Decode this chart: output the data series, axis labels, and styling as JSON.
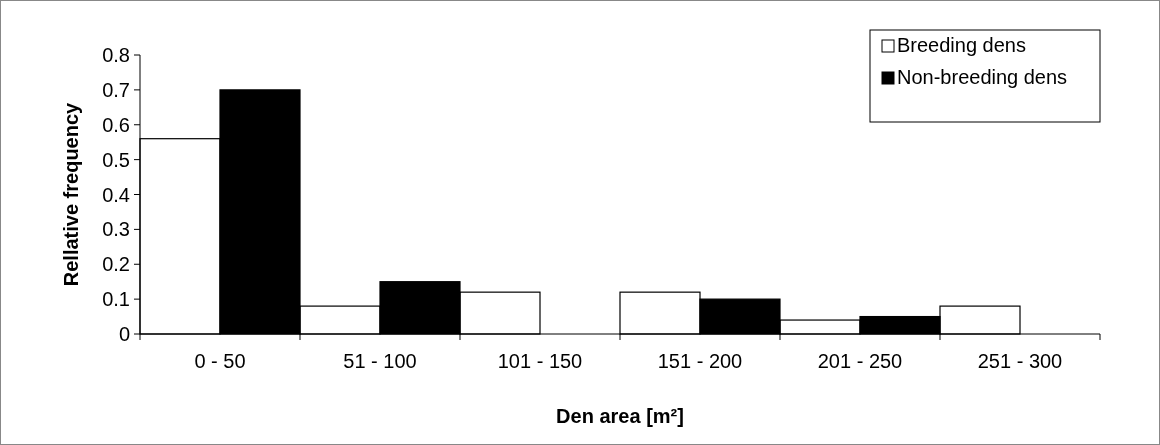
{
  "chart_data": {
    "type": "bar",
    "xlabel": "Den area [m²]",
    "ylabel": "Rellative frequency",
    "categories": [
      "0 - 50",
      "51 - 100",
      "101 - 150",
      "151 - 200",
      "201 - 250",
      "251 - 300"
    ],
    "series": [
      {
        "name": "Breeding dens",
        "color": "#ffffff",
        "values": [
          0.56,
          0.08,
          0.12,
          0.12,
          0.04,
          0.08
        ]
      },
      {
        "name": "Non-breeding dens",
        "color": "#000000",
        "values": [
          0.7,
          0.15,
          0,
          0.1,
          0.05,
          0
        ]
      }
    ],
    "ylim": [
      0,
      0.8
    ],
    "yticks": [
      0,
      {
        "value": 0.1,
        "label": "0.1"
      },
      {
        "value": 0.2,
        "label": "0.2"
      },
      {
        "value": 0.3,
        "label": "0.3"
      },
      {
        "value": 0.4,
        "label": "0.4"
      },
      {
        "value": 0.5,
        "label": "0.5"
      },
      {
        "value": 0.6,
        "label": "0.6"
      },
      {
        "value": 0.7,
        "label": "0.7"
      },
      {
        "value": 0.8,
        "label": "0.8"
      }
    ],
    "legend": "top right",
    "grid": false
  }
}
